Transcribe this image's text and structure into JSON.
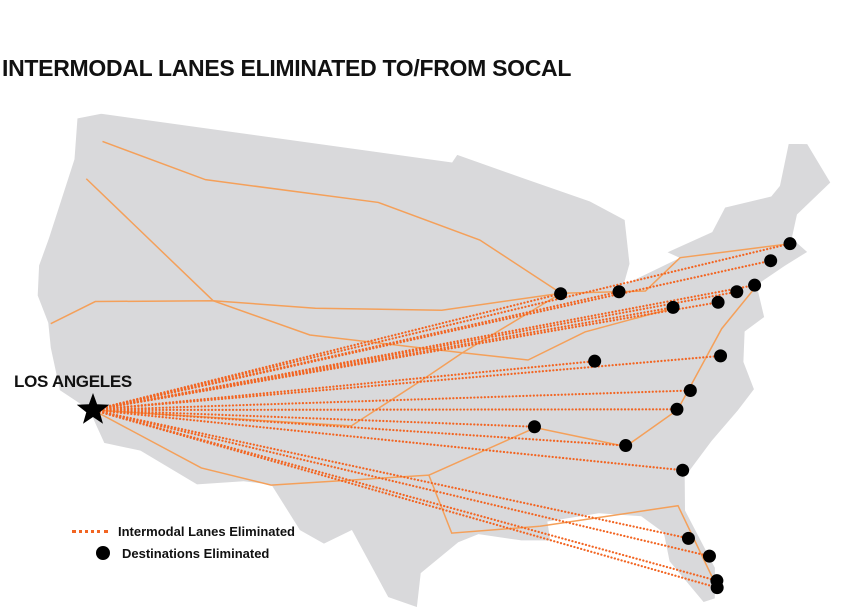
{
  "title": "INTERMODAL LANES ELIMINATED TO/FROM SOCAL",
  "origin": {
    "label": "LOS ANGELES",
    "lat": 34.05,
    "lon": -118.24,
    "icon": "star-icon"
  },
  "legend": {
    "lanes_label": "Intermodal Lanes Eliminated",
    "destinations_label": "Destinations Eliminated"
  },
  "colors": {
    "land": "#d9d9db",
    "lane": "#f26522",
    "rail": "#f4a05a",
    "destination": "#000000",
    "water": "#a8d4e6"
  },
  "destinations": [
    {
      "lat": 42.36,
      "lon": -71.06
    },
    {
      "lat": 41.76,
      "lon": -72.68
    },
    {
      "lat": 40.73,
      "lon": -74.17
    },
    {
      "lat": 40.6,
      "lon": -75.47
    },
    {
      "lat": 40.27,
      "lon": -76.88
    },
    {
      "lat": 40.44,
      "lon": -79.99
    },
    {
      "lat": 41.65,
      "lon": -83.54
    },
    {
      "lat": 41.88,
      "lon": -87.63
    },
    {
      "lat": 38.25,
      "lon": -85.76
    },
    {
      "lat": 37.54,
      "lon": -77.43
    },
    {
      "lat": 36.07,
      "lon": -79.79
    },
    {
      "lat": 35.23,
      "lon": -80.84
    },
    {
      "lat": 35.15,
      "lon": -90.05
    },
    {
      "lat": 33.75,
      "lon": -84.39
    },
    {
      "lat": 32.08,
      "lon": -81.09
    },
    {
      "lat": 28.54,
      "lon": -81.38
    },
    {
      "lat": 27.45,
      "lon": -80.33
    },
    {
      "lat": 26.12,
      "lon": -80.14
    },
    {
      "lat": 25.76,
      "lon": -80.19
    }
  ]
}
